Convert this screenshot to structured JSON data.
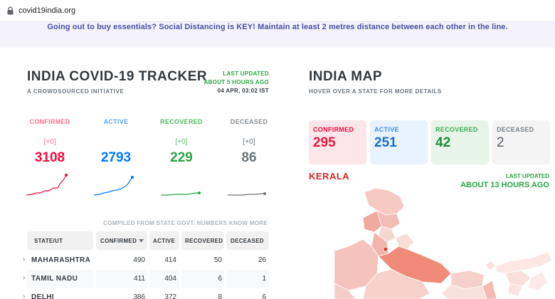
{
  "browser": {
    "url": "covid19india.org"
  },
  "banner": {
    "message": "Going out to buy essentials? Social Distancing is KEY! Maintain at least 2 metres distance between each other in the line."
  },
  "tracker": {
    "title": "INDIA COVID-19 TRACKER",
    "subtitle": "A CROWDSOURCED INITIATIVE",
    "last_updated_label": "LAST UPDATED",
    "last_updated_ago": "ABOUT 5 HOURS AGO",
    "last_updated_date": "04 APR, 03:02 IST"
  },
  "levels": [
    {
      "label": "CONFIRMED",
      "delta": "[+0]",
      "value": "3108",
      "color": "#ff073a"
    },
    {
      "label": "ACTIVE",
      "delta": "",
      "value": "2793",
      "color": "#007bff"
    },
    {
      "label": "RECOVERED",
      "delta": "[+0]",
      "value": "229",
      "color": "#28a745"
    },
    {
      "label": "DECEASED",
      "delta": "[+0]",
      "value": "86",
      "color": "#6c757d"
    }
  ],
  "table": {
    "compiled_note": "COMPILED FROM STATE GOVT. NUMBERS KNOW MORE",
    "headers": [
      "STATE/UT",
      "CONFIRMED",
      "ACTIVE",
      "RECOVERED",
      "DECEASED"
    ],
    "rows": [
      {
        "state": "MAHARASHTRA",
        "confirmed": "490",
        "active": "414",
        "recovered": "50",
        "deceased": "26"
      },
      {
        "state": "TAMIL NADU",
        "confirmed": "411",
        "active": "404",
        "recovered": "6",
        "deceased": "1"
      },
      {
        "state": "DELHI",
        "confirmed": "386",
        "active": "372",
        "recovered": "8",
        "deceased": "6"
      }
    ]
  },
  "map": {
    "title": "INDIA MAP",
    "subtitle": "HOVER OVER A STATE FOR MORE DETAILS",
    "stats": [
      {
        "label": "CONFIRMED",
        "value": "295"
      },
      {
        "label": "ACTIVE",
        "value": "251"
      },
      {
        "label": "RECOVERED",
        "value": "42"
      },
      {
        "label": "DECEASED",
        "value": "2"
      }
    ],
    "selected_state": "KERALA",
    "last_updated_label": "LAST UPDATED",
    "last_updated_ago": "ABOUT 13 HOURS AGO"
  }
}
